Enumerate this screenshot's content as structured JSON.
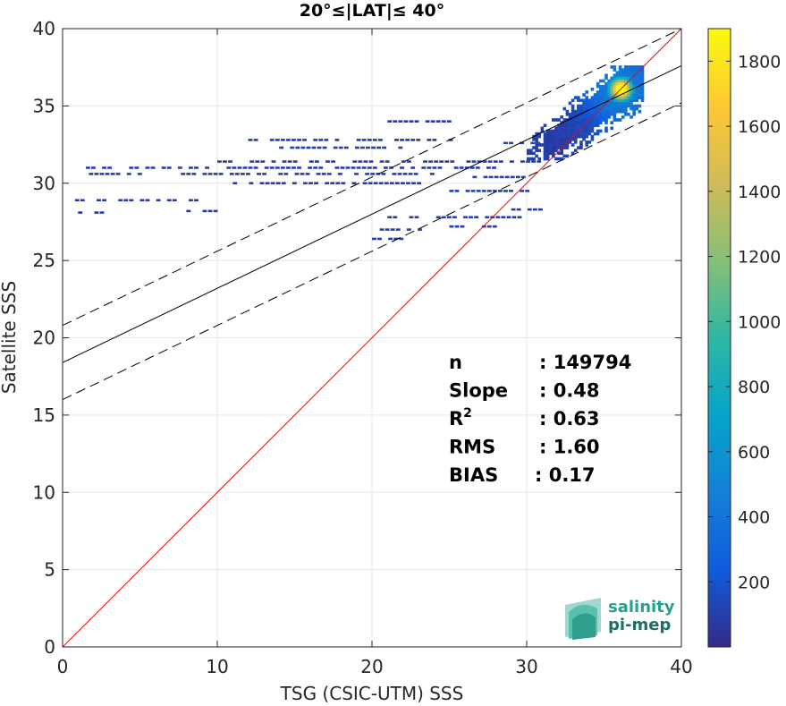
{
  "chart_data": {
    "type": "scatter",
    "title": "20°≤|LAT|≤ 40°",
    "xlabel": "TSG (CSIC-UTM) SSS",
    "ylabel": "Satellite SSS",
    "xlim": [
      0,
      40
    ],
    "ylim": [
      0,
      40
    ],
    "xticks": [
      "0",
      "10",
      "20",
      "30",
      "40"
    ],
    "yticks": [
      "0",
      "5",
      "10",
      "15",
      "20",
      "25",
      "30",
      "35",
      "40"
    ],
    "grid": true,
    "colorbar": {
      "min": 0,
      "max": 1900,
      "ticks": [
        "200",
        "400",
        "600",
        "800",
        "1000",
        "1200",
        "1400",
        "1600",
        "1800"
      ],
      "colormap": [
        "#352a87",
        "#0f5cdd",
        "#1481d6",
        "#06a4ca",
        "#2eb7a4",
        "#87bf77",
        "#d1bb59",
        "#fec832",
        "#f9fb0e"
      ]
    },
    "lines": {
      "identity": {
        "slope": 1.0,
        "intercept": 0.0,
        "color": "#ff0000"
      },
      "fit": {
        "slope": 0.48,
        "intercept": 18.4,
        "color": "#000000"
      },
      "upper_band": {
        "slope": 0.48,
        "intercept": 20.8,
        "style": "dashed"
      },
      "lower_band": {
        "slope": 0.48,
        "intercept": 16.0,
        "style": "dashed"
      }
    },
    "dense_cluster": {
      "x_range": [
        30,
        37.5
      ],
      "y_range": [
        31.5,
        37.5
      ],
      "peak": [
        36,
        36
      ],
      "peak_count": 1850
    },
    "sparse_bins": [
      {
        "x": [
          1.2,
          2.2
        ],
        "y": 27.3,
        "count": 60
      },
      {
        "x": [
          1.0,
          2.5
        ],
        "y": 28.1,
        "count": 60
      },
      {
        "x": [
          0.8,
          9.0
        ],
        "y": 28.9,
        "count": 80
      },
      {
        "x": [
          8.0,
          10.0
        ],
        "y": 28.2,
        "count": 60
      },
      {
        "x": [
          1.5,
          28.0
        ],
        "y": 31.0,
        "count": 90
      },
      {
        "x": [
          1.0,
          24.0
        ],
        "y": 30.6,
        "count": 90
      },
      {
        "x": [
          10.0,
          31.0
        ],
        "y": 31.4,
        "count": 90
      },
      {
        "x": [
          11.0,
          23.0
        ],
        "y": 30.0,
        "count": 70
      },
      {
        "x": [
          12.0,
          18.5
        ],
        "y": 32.8,
        "count": 90
      },
      {
        "x": [
          14.0,
          22.0
        ],
        "y": 32.3,
        "count": 90
      },
      {
        "x": [
          19.0,
          25.0
        ],
        "y": 32.8,
        "count": 80
      },
      {
        "x": [
          21.0,
          25.0
        ],
        "y": 34.0,
        "count": 60
      },
      {
        "x": [
          20.5,
          23.0
        ],
        "y": 27.0,
        "count": 100
      },
      {
        "x": [
          21.0,
          30.0
        ],
        "y": 27.8,
        "count": 100
      },
      {
        "x": [
          20.0,
          22.0
        ],
        "y": 26.4,
        "count": 100
      },
      {
        "x": [
          25.0,
          28.0
        ],
        "y": 27.2,
        "count": 100
      },
      {
        "x": [
          25.0,
          30.5
        ],
        "y": 29.5,
        "count": 100
      },
      {
        "x": [
          26.5,
          30.0
        ],
        "y": 30.4,
        "count": 90
      },
      {
        "x": [
          29.0,
          31.0
        ],
        "y": 28.3,
        "count": 80
      },
      {
        "x": [
          28.5,
          33.0
        ],
        "y": 32.6,
        "count": 120
      }
    ],
    "stats": [
      {
        "label": "n",
        "value": ": 149794"
      },
      {
        "label": "Slope",
        "value": ": 0.48"
      },
      {
        "label": "R",
        "sup": "2",
        "value": ": 0.63"
      },
      {
        "label": "RMS",
        "value": ": 1.60"
      },
      {
        "label": "BIAS",
        "value": ": 0.17"
      }
    ]
  },
  "logo": {
    "line1": "salinity",
    "line2": "pi-mep"
  }
}
